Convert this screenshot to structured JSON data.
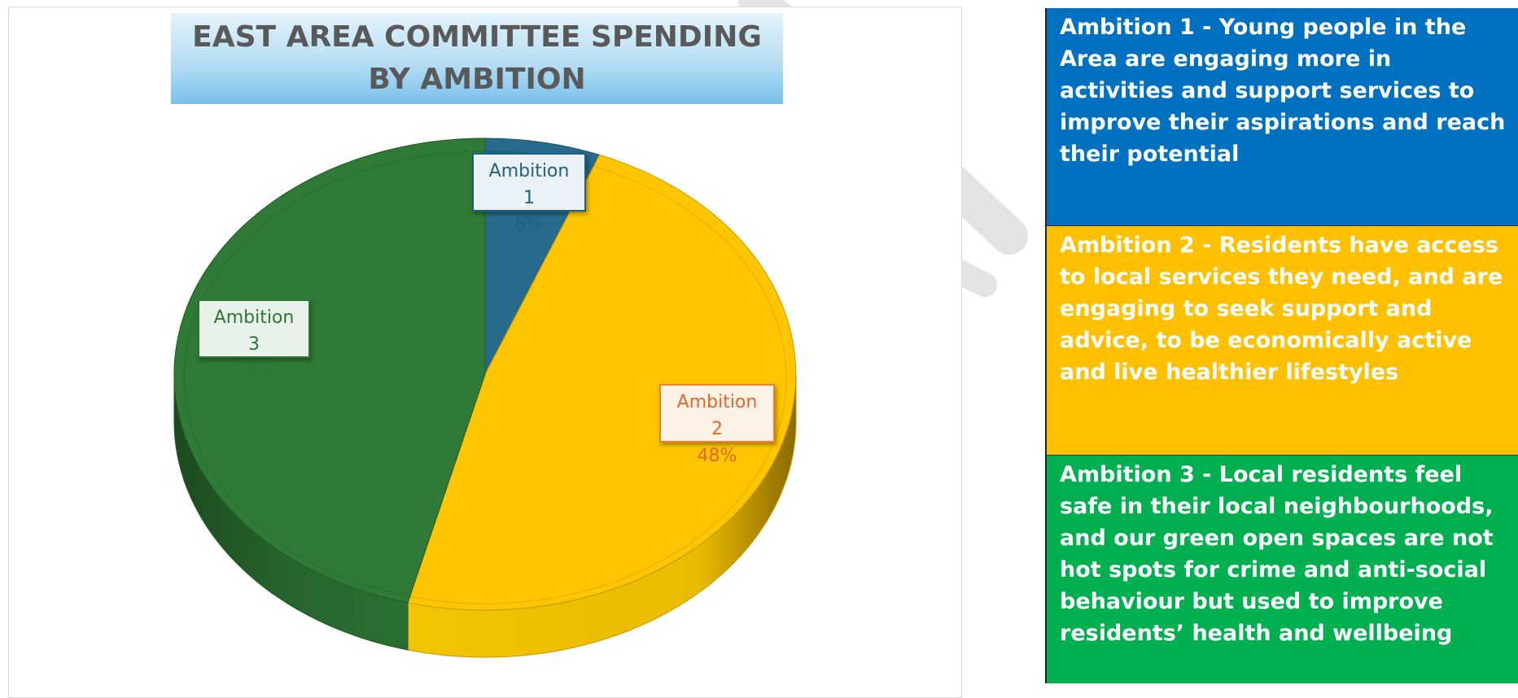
{
  "chart_data": {
    "type": "pie",
    "title": "EAST AREA COMMITTEE SPENDING BY AMBITION",
    "categories": [
      "Ambition 1",
      "Ambition 2",
      "Ambition 3"
    ],
    "values": [
      6,
      48,
      46
    ],
    "labels": [
      "6%",
      "48%",
      "46%"
    ],
    "colors": [
      "#286a8c",
      "#fdc600",
      "#2f7a37"
    ],
    "legend": "none"
  },
  "panel": {
    "ambitions": [
      {
        "text": "Ambition 1 - Young people in the Area are engaging more in activities and support services to improve their aspirations and reach their potential",
        "color": "#0070c0"
      },
      {
        "text": "Ambition 2 - Residents have access to local services they need, and are engaging to seek support and advice, to be economically active and live healthier lifestyles",
        "color": "#ffc000"
      },
      {
        "text": "Ambition 3 - Local residents feel safe in their local neighbourhoods, and our green open spaces are not hot spots for crime and anti-social behaviour but used to improve residents’ health and wellbeing",
        "color": "#00b050"
      }
    ]
  }
}
